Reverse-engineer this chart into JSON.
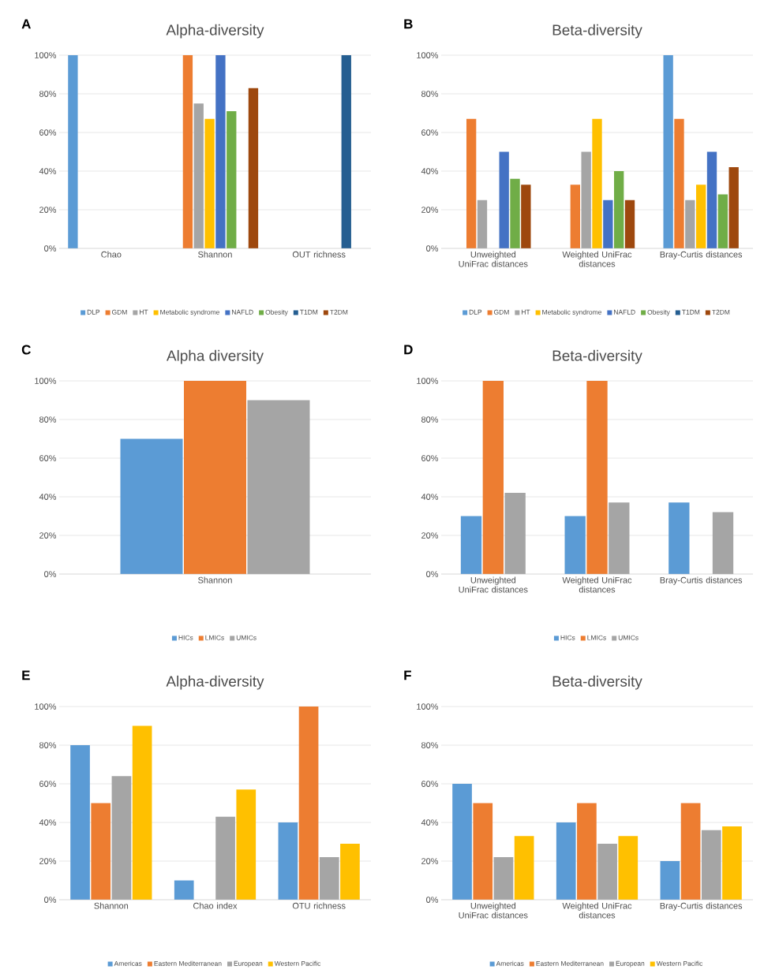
{
  "chart_data": [
    {
      "type": "bar",
      "title": "Alpha-diversity",
      "annotations": [
        "A"
      ],
      "categories": [
        "Chao",
        "Shannon",
        "OUT richness"
      ],
      "ylim": [
        0,
        100
      ],
      "yticks": [
        {
          "value": 0,
          "label": "0%"
        },
        {
          "value": 20,
          "label": "20%"
        },
        {
          "value": 40,
          "label": "40%"
        },
        {
          "value": 60,
          "label": "60%"
        },
        {
          "value": 80,
          "label": "80%"
        },
        {
          "value": 100,
          "label": "100%"
        }
      ],
      "grid": "y",
      "legend": "bottom",
      "series": [
        {
          "name": "DLP",
          "color": "#5b9bd5",
          "values": [
            100,
            null,
            null
          ]
        },
        {
          "name": "GDM",
          "color": "#ed7d31",
          "values": [
            null,
            100,
            null
          ]
        },
        {
          "name": "HT",
          "color": "#a5a5a5",
          "values": [
            null,
            75,
            null
          ]
        },
        {
          "name": "Metabolic syndrome",
          "color": "#ffc000",
          "values": [
            null,
            67,
            null
          ]
        },
        {
          "name": "NAFLD",
          "color": "#4472c4",
          "values": [
            null,
            100,
            null
          ]
        },
        {
          "name": "Obesity",
          "color": "#70ad47",
          "values": [
            null,
            71,
            null
          ]
        },
        {
          "name": "T1DM",
          "color": "#255e91",
          "values": [
            null,
            null,
            100
          ]
        },
        {
          "name": "T2DM",
          "color": "#9e480e",
          "values": [
            null,
            83,
            null
          ]
        }
      ]
    },
    {
      "type": "bar",
      "title": "Beta-diversity",
      "annotations": [
        "B"
      ],
      "categories": [
        "Unweighted UniFrac distances",
        "Weighted UniFrac distances",
        "Bray-Curtis distances"
      ],
      "ylim": [
        0,
        100
      ],
      "yticks": [
        {
          "value": 0,
          "label": "0%"
        },
        {
          "value": 20,
          "label": "20%"
        },
        {
          "value": 40,
          "label": "40%"
        },
        {
          "value": 60,
          "label": "60%"
        },
        {
          "value": 80,
          "label": "80%"
        },
        {
          "value": 100,
          "label": "100%"
        }
      ],
      "grid": "y",
      "legend": "bottom",
      "series": [
        {
          "name": "DLP",
          "color": "#5b9bd5",
          "values": [
            null,
            null,
            100
          ]
        },
        {
          "name": "GDM",
          "color": "#ed7d31",
          "values": [
            67,
            33,
            67
          ]
        },
        {
          "name": "HT",
          "color": "#a5a5a5",
          "values": [
            25,
            50,
            25
          ]
        },
        {
          "name": "Metabolic syndrome",
          "color": "#ffc000",
          "values": [
            null,
            67,
            33
          ]
        },
        {
          "name": "NAFLD",
          "color": "#4472c4",
          "values": [
            50,
            25,
            50
          ]
        },
        {
          "name": "Obesity",
          "color": "#70ad47",
          "values": [
            36,
            40,
            28
          ]
        },
        {
          "name": "T1DM",
          "color": "#255e91",
          "values": [
            null,
            null,
            null
          ]
        },
        {
          "name": "T2DM",
          "color": "#9e480e",
          "values": [
            33,
            25,
            42
          ]
        }
      ]
    },
    {
      "type": "bar",
      "title": "Alpha diversity",
      "annotations": [
        "C"
      ],
      "categories": [
        "Shannon"
      ],
      "ylim": [
        0,
        100
      ],
      "yticks": [
        {
          "value": 0,
          "label": "0%"
        },
        {
          "value": 20,
          "label": "20%"
        },
        {
          "value": 40,
          "label": "40%"
        },
        {
          "value": 60,
          "label": "60%"
        },
        {
          "value": 80,
          "label": "80%"
        },
        {
          "value": 100,
          "label": "100%"
        }
      ],
      "grid": "y",
      "legend": "bottom",
      "series": [
        {
          "name": "HICs",
          "color": "#5b9bd5",
          "values": [
            70
          ]
        },
        {
          "name": "LMICs",
          "color": "#ed7d31",
          "values": [
            100
          ]
        },
        {
          "name": "UMICs",
          "color": "#a5a5a5",
          "values": [
            90
          ]
        }
      ]
    },
    {
      "type": "bar",
      "title": "Beta-diversity",
      "annotations": [
        "D"
      ],
      "categories": [
        "Unweighted UniFrac distances",
        "Weighted UniFrac distances",
        "Bray-Curtis distances"
      ],
      "ylim": [
        0,
        100
      ],
      "yticks": [
        {
          "value": 0,
          "label": "0%"
        },
        {
          "value": 20,
          "label": "20%"
        },
        {
          "value": 40,
          "label": "40%"
        },
        {
          "value": 60,
          "label": "60%"
        },
        {
          "value": 80,
          "label": "80%"
        },
        {
          "value": 100,
          "label": "100%"
        }
      ],
      "grid": "y",
      "legend": "bottom",
      "series": [
        {
          "name": "HICs",
          "color": "#5b9bd5",
          "values": [
            30,
            30,
            37
          ]
        },
        {
          "name": "LMICs",
          "color": "#ed7d31",
          "values": [
            100,
            100,
            null
          ]
        },
        {
          "name": "UMICs",
          "color": "#a5a5a5",
          "values": [
            42,
            37,
            32
          ]
        }
      ]
    },
    {
      "type": "bar",
      "title": "Alpha-diversity",
      "annotations": [
        "E"
      ],
      "categories": [
        "Shannon",
        "Chao index",
        "OTU richness"
      ],
      "ylim": [
        0,
        100
      ],
      "yticks": [
        {
          "value": 0,
          "label": "0%"
        },
        {
          "value": 20,
          "label": "20%"
        },
        {
          "value": 40,
          "label": "40%"
        },
        {
          "value": 60,
          "label": "60%"
        },
        {
          "value": 80,
          "label": "80%"
        },
        {
          "value": 100,
          "label": "100%"
        }
      ],
      "grid": "y",
      "legend": "bottom",
      "series": [
        {
          "name": "Americas",
          "color": "#5b9bd5",
          "values": [
            80,
            10,
            40
          ]
        },
        {
          "name": "Eastern Mediterranean",
          "color": "#ed7d31",
          "values": [
            50,
            null,
            100
          ]
        },
        {
          "name": "European",
          "color": "#a5a5a5",
          "values": [
            64,
            43,
            22
          ]
        },
        {
          "name": "Western Pacific",
          "color": "#ffc000",
          "values": [
            90,
            57,
            29
          ]
        }
      ]
    },
    {
      "type": "bar",
      "title": "Beta-diversity",
      "annotations": [
        "F"
      ],
      "categories": [
        "Unweighted UniFrac distances",
        "Weighted UniFrac distances",
        "Bray-Curtis distances"
      ],
      "ylim": [
        0,
        100
      ],
      "yticks": [
        {
          "value": 0,
          "label": "0%"
        },
        {
          "value": 20,
          "label": "20%"
        },
        {
          "value": 40,
          "label": "40%"
        },
        {
          "value": 60,
          "label": "60%"
        },
        {
          "value": 80,
          "label": "80%"
        },
        {
          "value": 100,
          "label": "100%"
        }
      ],
      "grid": "y",
      "legend": "bottom",
      "series": [
        {
          "name": "Americas",
          "color": "#5b9bd5",
          "values": [
            60,
            40,
            20
          ]
        },
        {
          "name": "Eastern Mediterranean",
          "color": "#ed7d31",
          "values": [
            50,
            50,
            50
          ]
        },
        {
          "name": "European",
          "color": "#a5a5a5",
          "values": [
            22,
            29,
            36
          ]
        },
        {
          "name": "Western Pacific",
          "color": "#ffc000",
          "values": [
            33,
            33,
            38
          ]
        }
      ]
    }
  ]
}
